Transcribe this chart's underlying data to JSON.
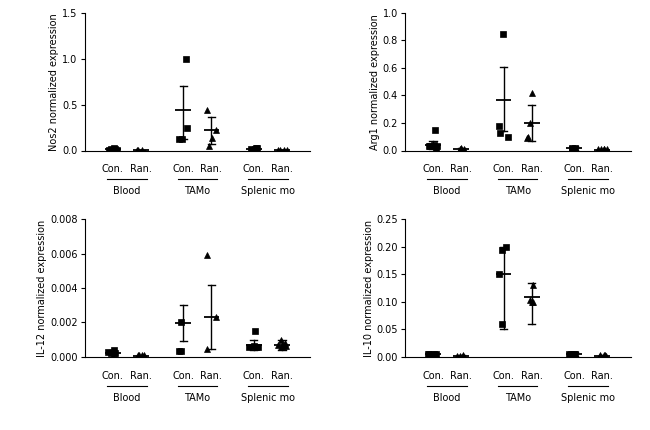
{
  "panels": [
    {
      "ylabel": "Nos2 normalized expression",
      "ylim": [
        0,
        1.5
      ],
      "yticks": [
        0,
        0.5,
        1.0,
        1.5
      ],
      "groups": [
        {
          "label": "Con.",
          "parent": "Blood",
          "marker": "s",
          "points": [
            0.02,
            0.01,
            0.02,
            0.03,
            0.01
          ],
          "mean": 0.02,
          "sd_lo": 0.01,
          "sd_hi": 0.03
        },
        {
          "label": "Ran.",
          "parent": "Blood",
          "marker": "^",
          "points": [
            0.01,
            0.01,
            0.0,
            0.01
          ],
          "mean": 0.005,
          "sd_lo": 0.0,
          "sd_hi": 0.01
        },
        {
          "label": "Con.",
          "parent": "TAMo",
          "marker": "s",
          "points": [
            0.25,
            0.12,
            1.0,
            0.13
          ],
          "mean": 0.44,
          "sd_lo": 0.12,
          "sd_hi": 0.7
        },
        {
          "label": "Ran.",
          "parent": "TAMo",
          "marker": "^",
          "points": [
            0.22,
            0.14,
            0.05,
            0.44
          ],
          "mean": 0.22,
          "sd_lo": 0.07,
          "sd_hi": 0.37
        },
        {
          "label": "Con.",
          "parent": "Splenic mo",
          "marker": "s",
          "points": [
            0.03,
            0.02,
            0.02,
            0.03
          ],
          "mean": 0.02,
          "sd_lo": 0.01,
          "sd_hi": 0.03
        },
        {
          "label": "Ran.",
          "parent": "Splenic mo",
          "marker": "^",
          "points": [
            0.01,
            0.01,
            0.0,
            0.01,
            0.01
          ],
          "mean": 0.005,
          "sd_lo": 0.0,
          "sd_hi": 0.01
        }
      ]
    },
    {
      "ylabel": "Arg1 normalized expression",
      "ylim": [
        0,
        1.0
      ],
      "yticks": [
        0,
        0.2,
        0.4,
        0.6,
        0.8,
        1.0
      ],
      "groups": [
        {
          "label": "Con.",
          "parent": "Blood",
          "marker": "s",
          "points": [
            0.03,
            0.04,
            0.15,
            0.02,
            0.03,
            0.03
          ],
          "mean": 0.04,
          "sd_lo": 0.01,
          "sd_hi": 0.07
        },
        {
          "label": "Ran.",
          "parent": "Blood",
          "marker": "^",
          "points": [
            0.01,
            0.01,
            0.02,
            0.01
          ],
          "mean": 0.01,
          "sd_lo": 0.0,
          "sd_hi": 0.02
        },
        {
          "label": "Con.",
          "parent": "TAMo",
          "marker": "s",
          "points": [
            0.18,
            0.1,
            0.85,
            0.13
          ],
          "mean": 0.37,
          "sd_lo": 0.14,
          "sd_hi": 0.61
        },
        {
          "label": "Ran.",
          "parent": "TAMo",
          "marker": "^",
          "points": [
            0.2,
            0.09,
            0.42,
            0.1
          ],
          "mean": 0.2,
          "sd_lo": 0.07,
          "sd_hi": 0.33
        },
        {
          "label": "Con.",
          "parent": "Splenic mo",
          "marker": "s",
          "points": [
            0.01,
            0.02,
            0.02,
            0.01
          ],
          "mean": 0.015,
          "sd_lo": 0.005,
          "sd_hi": 0.03
        },
        {
          "label": "Ran.",
          "parent": "Splenic mo",
          "marker": "^",
          "points": [
            0.01,
            0.01,
            0.01,
            0.01,
            0.01
          ],
          "mean": 0.005,
          "sd_lo": 0.0,
          "sd_hi": 0.01
        }
      ]
    },
    {
      "ylabel": "IL-12 normalized expression",
      "ylim": [
        0,
        0.008
      ],
      "yticks": [
        0,
        0.002,
        0.004,
        0.006,
        0.008
      ],
      "groups": [
        {
          "label": "Con.",
          "parent": "Blood",
          "marker": "s",
          "points": [
            0.0002,
            0.0003,
            0.0004,
            0.0002,
            0.0002
          ],
          "mean": 0.00025,
          "sd_lo": 0.0001,
          "sd_hi": 0.0004
        },
        {
          "label": "Ran.",
          "parent": "Blood",
          "marker": "^",
          "points": [
            0.0001,
            0.0001,
            0.0001,
            0.0001
          ],
          "mean": 5e-05,
          "sd_lo": 0.0,
          "sd_hi": 0.0001
        },
        {
          "label": "Con.",
          "parent": "TAMo",
          "marker": "s",
          "points": [
            0.002,
            0.00035,
            0.00035
          ],
          "mean": 0.00195,
          "sd_lo": 0.0009,
          "sd_hi": 0.003
        },
        {
          "label": "Ran.",
          "parent": "TAMo",
          "marker": "^",
          "points": [
            0.0023,
            0.00045,
            0.0059
          ],
          "mean": 0.0023,
          "sd_lo": 0.00045,
          "sd_hi": 0.0042
        },
        {
          "label": "Con.",
          "parent": "Splenic mo",
          "marker": "s",
          "points": [
            0.00065,
            0.00055,
            0.0006,
            0.0015,
            0.0006
          ],
          "mean": 0.0007,
          "sd_lo": 0.0004,
          "sd_hi": 0.001
        },
        {
          "label": "Ran.",
          "parent": "Splenic mo",
          "marker": "^",
          "points": [
            0.0006,
            0.00065,
            0.0008,
            0.0007,
            0.00065,
            0.001
          ],
          "mean": 0.0007,
          "sd_lo": 0.0004,
          "sd_hi": 0.001
        }
      ]
    },
    {
      "ylabel": "IL-10 normalized expression",
      "ylim": [
        0,
        0.25
      ],
      "yticks": [
        0,
        0.05,
        0.1,
        0.15,
        0.2,
        0.25
      ],
      "groups": [
        {
          "label": "Con.",
          "parent": "Blood",
          "marker": "s",
          "points": [
            0.005,
            0.006,
            0.005,
            0.005
          ],
          "mean": 0.005,
          "sd_lo": 0.003,
          "sd_hi": 0.008
        },
        {
          "label": "Ran.",
          "parent": "Blood",
          "marker": "^",
          "points": [
            0.002,
            0.002,
            0.003,
            0.002
          ],
          "mean": 0.002,
          "sd_lo": 0.001,
          "sd_hi": 0.004
        },
        {
          "label": "Con.",
          "parent": "TAMo",
          "marker": "s",
          "points": [
            0.195,
            0.2,
            0.06,
            0.15
          ],
          "mean": 0.15,
          "sd_lo": 0.05,
          "sd_hi": 0.2
        },
        {
          "label": "Ran.",
          "parent": "TAMo",
          "marker": "^",
          "points": [
            0.103,
            0.13,
            0.1,
            0.1
          ],
          "mean": 0.108,
          "sd_lo": 0.06,
          "sd_hi": 0.135
        },
        {
          "label": "Con.",
          "parent": "Splenic mo",
          "marker": "s",
          "points": [
            0.005,
            0.005,
            0.005,
            0.005
          ],
          "mean": 0.005,
          "sd_lo": 0.002,
          "sd_hi": 0.008
        },
        {
          "label": "Ran.",
          "parent": "Splenic mo",
          "marker": "^",
          "points": [
            0.002,
            0.003,
            0.002,
            0.003,
            0.003
          ],
          "mean": 0.002,
          "sd_lo": 0.001,
          "sd_hi": 0.004
        }
      ]
    }
  ],
  "parent_labels": [
    "Blood",
    "TAMo",
    "Splenic mo"
  ],
  "marker_color": "#000000",
  "marker_size": 4,
  "tick_fontsize": 7,
  "label_fontsize": 7,
  "group_label_fontsize": 7,
  "parent_label_fontsize": 7
}
